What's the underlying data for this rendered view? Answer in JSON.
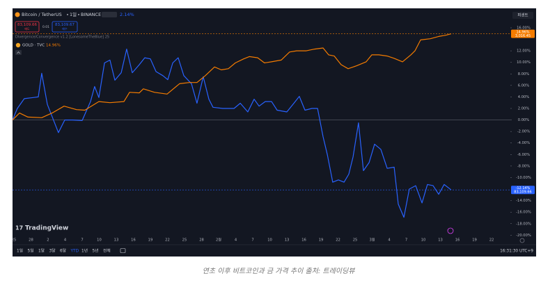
{
  "header": {
    "interval": "1일",
    "exchange": "BINANCE",
    "change": "2.14%",
    "sell_price": "83,109.66",
    "sell_label": "매도",
    "spread": "0.01",
    "buy_price": "83,109.67",
    "buy_label": "매수",
    "indicator": "Divergence/Convergence v1.2 [LonesomeTheBlue] 25",
    "scale_mode": "퍼센트"
  },
  "toolbar": {
    "ranges": [
      "1일",
      "5일",
      "1달",
      "3달",
      "6달",
      "YTD",
      "1년",
      "5년",
      "전체"
    ],
    "active": 5,
    "clock": "16:31:30 UTC+9"
  },
  "logo": "TradingView",
  "caption": "연초 이후 비트코인과 금 가격 추이 출처: 트레이딩뷰",
  "chart_data": {
    "type": "line",
    "x_labels": [
      "25",
      "28",
      "2",
      "4",
      "7",
      "10",
      "13",
      "16",
      "19",
      "22",
      "25",
      "28",
      "2월",
      "4",
      "7",
      "10",
      "13",
      "16",
      "19",
      "22",
      "25",
      "3월",
      "4",
      "7",
      "10",
      "13",
      "16",
      "19",
      "22"
    ],
    "xlim": [
      -0.08,
      29.1
    ],
    "ylim": [
      -20.2,
      16.6
    ],
    "yticks": [
      {
        "value": 16,
        "label": "16.00%"
      },
      {
        "value": 12,
        "label": "12.00%"
      },
      {
        "value": 10,
        "label": "10.00%"
      },
      {
        "value": 8,
        "label": "8.00%"
      },
      {
        "value": 6,
        "label": "6.00%"
      },
      {
        "value": 4,
        "label": "4.00%"
      },
      {
        "value": 2,
        "label": "2.00%"
      },
      {
        "value": 0,
        "label": "0.00%"
      },
      {
        "value": -2,
        "label": "-2.00%"
      },
      {
        "value": -4,
        "label": "-4.00%"
      },
      {
        "value": -6,
        "label": "-6.00%"
      },
      {
        "value": -8,
        "label": "-8.00%"
      },
      {
        "value": -10,
        "label": "-10.00%"
      },
      {
        "value": -14,
        "label": "-14.00%"
      },
      {
        "value": -16,
        "label": "-16.00%"
      },
      {
        "value": -18,
        "label": "-18.00%"
      },
      {
        "value": -20,
        "label": "-20.00%"
      }
    ],
    "zero_line": true,
    "series": [
      {
        "name": "Bitcoin / TetherUS",
        "color": "#2962ff",
        "last_label": "-12.14%",
        "price_label": "83,109.66",
        "x": [
          -0.08,
          0.2,
          0.61,
          1.14,
          1.43,
          1.63,
          1.96,
          2.61,
          2.98,
          3.43,
          4.0,
          4.49,
          4.73,
          4.98,
          5.31,
          5.63,
          5.92,
          6.29,
          6.61,
          6.94,
          7.35,
          7.67,
          8.0,
          8.33,
          8.73,
          9.02,
          9.31,
          9.63,
          9.96,
          10.41,
          10.73,
          11.1,
          11.43,
          11.67,
          12.24,
          12.9,
          13.27,
          13.71,
          14.08,
          14.37,
          14.73,
          15.1,
          15.43,
          16.0,
          16.41,
          16.73,
          17.06,
          17.47,
          17.8,
          18.12,
          18.37,
          18.69,
          19.02,
          19.35,
          19.63,
          19.88,
          20.2,
          20.49,
          20.82,
          21.14,
          21.51,
          21.88,
          22.29,
          22.53,
          22.86,
          23.18,
          23.55,
          23.92,
          24.24,
          24.57,
          24.9,
          25.22,
          25.63
        ],
        "values": [
          0,
          2.0,
          3.7,
          3.9,
          4.0,
          8.1,
          2.7,
          -2.2,
          0,
          0,
          -0.1,
          3.2,
          5.8,
          3.9,
          9.9,
          10.4,
          6.9,
          8.2,
          12.3,
          8.2,
          9.6,
          10.8,
          10.6,
          8.4,
          7.7,
          7.0,
          9.9,
          10.8,
          7.7,
          6.3,
          2.9,
          7.5,
          3.6,
          2.2,
          2.0,
          2.0,
          2.9,
          1.4,
          3.6,
          2.4,
          3.2,
          3.2,
          1.7,
          1.4,
          2.9,
          4.1,
          1.7,
          2.0,
          2.0,
          -2.9,
          -6.0,
          -10.8,
          -10.4,
          -10.8,
          -9.4,
          -6.4,
          -0.5,
          -8.8,
          -7.4,
          -4.2,
          -5.1,
          -8.4,
          -8.2,
          -14.6,
          -16.9,
          -12.0,
          -11.4,
          -14.4,
          -11.2,
          -11.4,
          -12.9,
          -11.2,
          -12.14
        ]
      },
      {
        "name": "GOLD · TVC",
        "color": "#f57c00",
        "last_label": "14.96%",
        "price_label": "3,016.45",
        "x": [
          -0.08,
          0.33,
          0.82,
          1.63,
          2.24,
          2.94,
          3.67,
          4.16,
          4.98,
          5.63,
          6.45,
          6.78,
          7.35,
          7.59,
          8.24,
          8.98,
          9.71,
          10.29,
          10.73,
          11.22,
          11.76,
          12.16,
          12.57,
          12.98,
          13.47,
          13.8,
          14.29,
          14.69,
          15.1,
          15.67,
          16.16,
          16.57,
          17.14,
          17.63,
          18.12,
          18.45,
          18.78,
          19.18,
          19.59,
          20.08,
          20.65,
          20.98,
          21.39,
          21.88,
          22.29,
          22.78,
          23.27,
          23.51,
          23.84,
          24.41,
          24.9,
          25.31,
          25.63
        ],
        "values": [
          0,
          1.2,
          0.5,
          0.4,
          1.2,
          2.4,
          1.8,
          1.7,
          3.2,
          3.0,
          3.2,
          4.8,
          4.7,
          5.4,
          4.8,
          4.5,
          6.3,
          6.5,
          6.5,
          7.7,
          9.2,
          8.7,
          8.9,
          9.9,
          10.6,
          11.0,
          10.8,
          9.9,
          10.1,
          10.4,
          11.8,
          12.0,
          12.0,
          12.3,
          12.5,
          11.3,
          11.1,
          9.6,
          8.9,
          9.4,
          10.1,
          11.3,
          11.3,
          11.1,
          10.7,
          10.1,
          11.3,
          12.0,
          13.9,
          14.1,
          14.5,
          14.7,
          14.96
        ]
      }
    ]
  }
}
